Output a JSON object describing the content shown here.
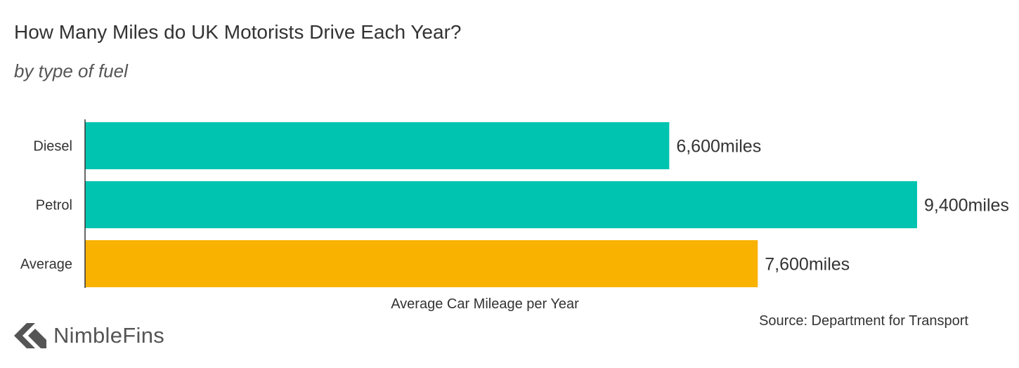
{
  "title": "How Many Miles do UK Motorists Drive Each Year?",
  "subtitle": "by type of fuel",
  "source": "Source: Department for Transport",
  "brand": {
    "name": "NimbleFins",
    "logo_icon": "nimblefins-chevron-logo-icon"
  },
  "chart_data": {
    "type": "bar",
    "orientation": "horizontal",
    "title": "How Many Miles do UK Motorists Drive Each Year?",
    "subtitle": "by type of fuel",
    "xlabel": "Average Car Mileage per Year",
    "ylabel": "",
    "categories": [
      "Diesel",
      "Petrol",
      "Average"
    ],
    "values": [
      6600,
      9400,
      7600
    ],
    "value_labels": [
      "6,600miles",
      "9,400miles",
      "7,600miles"
    ],
    "colors": [
      "#00c4b0",
      "#00c4b0",
      "#f9b200"
    ],
    "xlim": [
      0,
      9400
    ],
    "grid": false,
    "legend": "none"
  }
}
